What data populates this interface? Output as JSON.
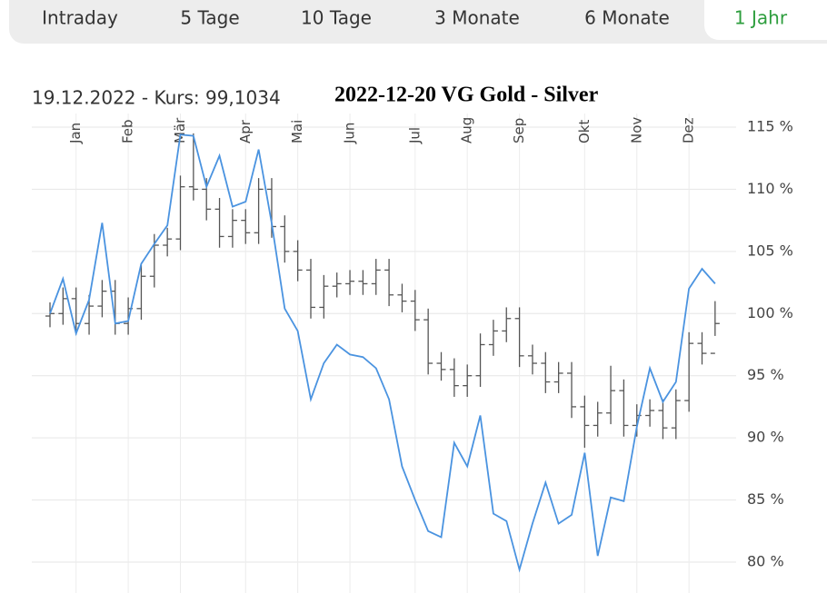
{
  "tabs": [
    "Intraday",
    "5 Tage",
    "10 Tage",
    "3 Monate",
    "6 Monate",
    "1 Jahr"
  ],
  "active_tab_index": 5,
  "chart_data": {
    "type": "ohlc-line",
    "title": "2022-12-20  VG  Gold - Silver",
    "subtitle": "19.12.2022  -  Kurs: 99,1034",
    "categories": [
      null,
      null,
      "Jan",
      null,
      null,
      null,
      "Feb",
      null,
      null,
      null,
      "Mär",
      null,
      null,
      null,
      null,
      "Apr",
      null,
      null,
      null,
      "Mai",
      null,
      null,
      null,
      "Jun",
      null,
      null,
      null,
      null,
      "Jul",
      null,
      null,
      null,
      "Aug",
      null,
      null,
      null,
      "Sep",
      null,
      null,
      null,
      null,
      "Okt",
      null,
      null,
      null,
      "Nov",
      null,
      null,
      null,
      "Dez",
      null,
      null
    ],
    "ylim": [
      79,
      116
    ],
    "yticks": [
      {
        "value": 80,
        "label": "80 %"
      },
      {
        "value": 85,
        "label": "85 %"
      },
      {
        "value": 90,
        "label": "90 %"
      },
      {
        "value": 95,
        "label": "95 %"
      },
      {
        "value": 100,
        "label": "100 %"
      },
      {
        "value": 105,
        "label": "105 %"
      },
      {
        "value": 110,
        "label": "110 %"
      },
      {
        "value": 115,
        "label": "115 %"
      }
    ],
    "grid": true,
    "line": {
      "color": "#4a93e0",
      "values": [
        100.0,
        102.8,
        98.4,
        101.1,
        107.3,
        99.2,
        99.4,
        104.0,
        105.6,
        107.1,
        114.4,
        114.3,
        110.2,
        112.7,
        108.6,
        109.0,
        113.2,
        107.3,
        100.4,
        98.6,
        93.1,
        96.0,
        97.5,
        96.7,
        96.5,
        95.6,
        93.1,
        87.7,
        85.0,
        82.5,
        82.0,
        89.6,
        87.7,
        91.8,
        83.9,
        83.3,
        79.4,
        83.1,
        86.4,
        83.1,
        83.8,
        88.8,
        80.5,
        85.2,
        84.9,
        90.9,
        95.6,
        92.9,
        94.5,
        102.0,
        103.6,
        102.4
      ]
    },
    "ohlc": {
      "color": "#555555",
      "open": [
        99.8,
        100.0,
        101.2,
        99.2,
        100.6,
        101.8,
        99.2,
        100.4,
        103.0,
        105.5,
        106.0,
        110.2,
        110.0,
        108.4,
        106.2,
        107.5,
        106.5,
        110.0,
        107.0,
        105.0,
        103.5,
        100.5,
        102.2,
        102.4,
        102.6,
        102.4,
        103.5,
        101.5,
        101.0,
        99.5,
        96.0,
        95.5,
        94.2,
        95.0,
        97.5,
        98.6,
        99.6,
        96.6,
        96.0,
        94.5,
        95.2,
        92.5,
        91.0,
        92.0,
        93.8,
        91.0,
        91.8,
        92.2,
        90.8,
        93.0,
        97.6,
        96.8
      ],
      "high": [
        100.9,
        102.1,
        102.1,
        101.5,
        102.7,
        102.7,
        101.3,
        103.9,
        106.4,
        106.9,
        111.1,
        114.5,
        110.9,
        109.3,
        108.4,
        108.4,
        110.9,
        110.9,
        107.9,
        105.9,
        104.4,
        103.1,
        103.3,
        103.5,
        103.5,
        104.4,
        104.4,
        102.4,
        101.9,
        100.4,
        96.9,
        96.4,
        95.9,
        98.4,
        99.5,
        100.5,
        100.5,
        97.5,
        96.9,
        96.1,
        96.1,
        93.4,
        92.9,
        95.8,
        94.7,
        92.7,
        93.1,
        93.1,
        93.9,
        98.5,
        98.5,
        101.0
      ],
      "low": [
        98.9,
        99.1,
        98.3,
        98.3,
        99.7,
        98.3,
        98.3,
        99.5,
        102.1,
        104.6,
        105.1,
        109.1,
        107.5,
        105.3,
        105.3,
        105.6,
        105.6,
        106.1,
        104.1,
        102.6,
        99.6,
        99.6,
        101.3,
        101.5,
        101.5,
        101.5,
        100.6,
        100.1,
        98.6,
        95.1,
        94.6,
        93.3,
        93.3,
        94.1,
        96.6,
        97.7,
        95.7,
        95.1,
        93.6,
        93.6,
        91.6,
        89.2,
        90.1,
        91.1,
        90.1,
        90.1,
        90.9,
        89.9,
        89.9,
        92.1,
        95.9,
        98.2
      ],
      "close": [
        100.0,
        101.2,
        99.2,
        100.6,
        101.8,
        99.2,
        100.4,
        103.0,
        105.5,
        106.0,
        110.2,
        110.0,
        108.4,
        106.2,
        107.5,
        106.5,
        110.0,
        107.0,
        105.0,
        103.5,
        100.5,
        102.2,
        102.4,
        102.6,
        102.4,
        103.5,
        101.5,
        101.0,
        99.5,
        96.0,
        95.5,
        94.2,
        95.0,
        97.5,
        98.6,
        99.6,
        96.6,
        96.0,
        94.5,
        95.2,
        92.5,
        91.0,
        92.0,
        93.8,
        91.0,
        91.8,
        92.2,
        90.8,
        93.0,
        97.6,
        96.8,
        99.2
      ]
    }
  }
}
